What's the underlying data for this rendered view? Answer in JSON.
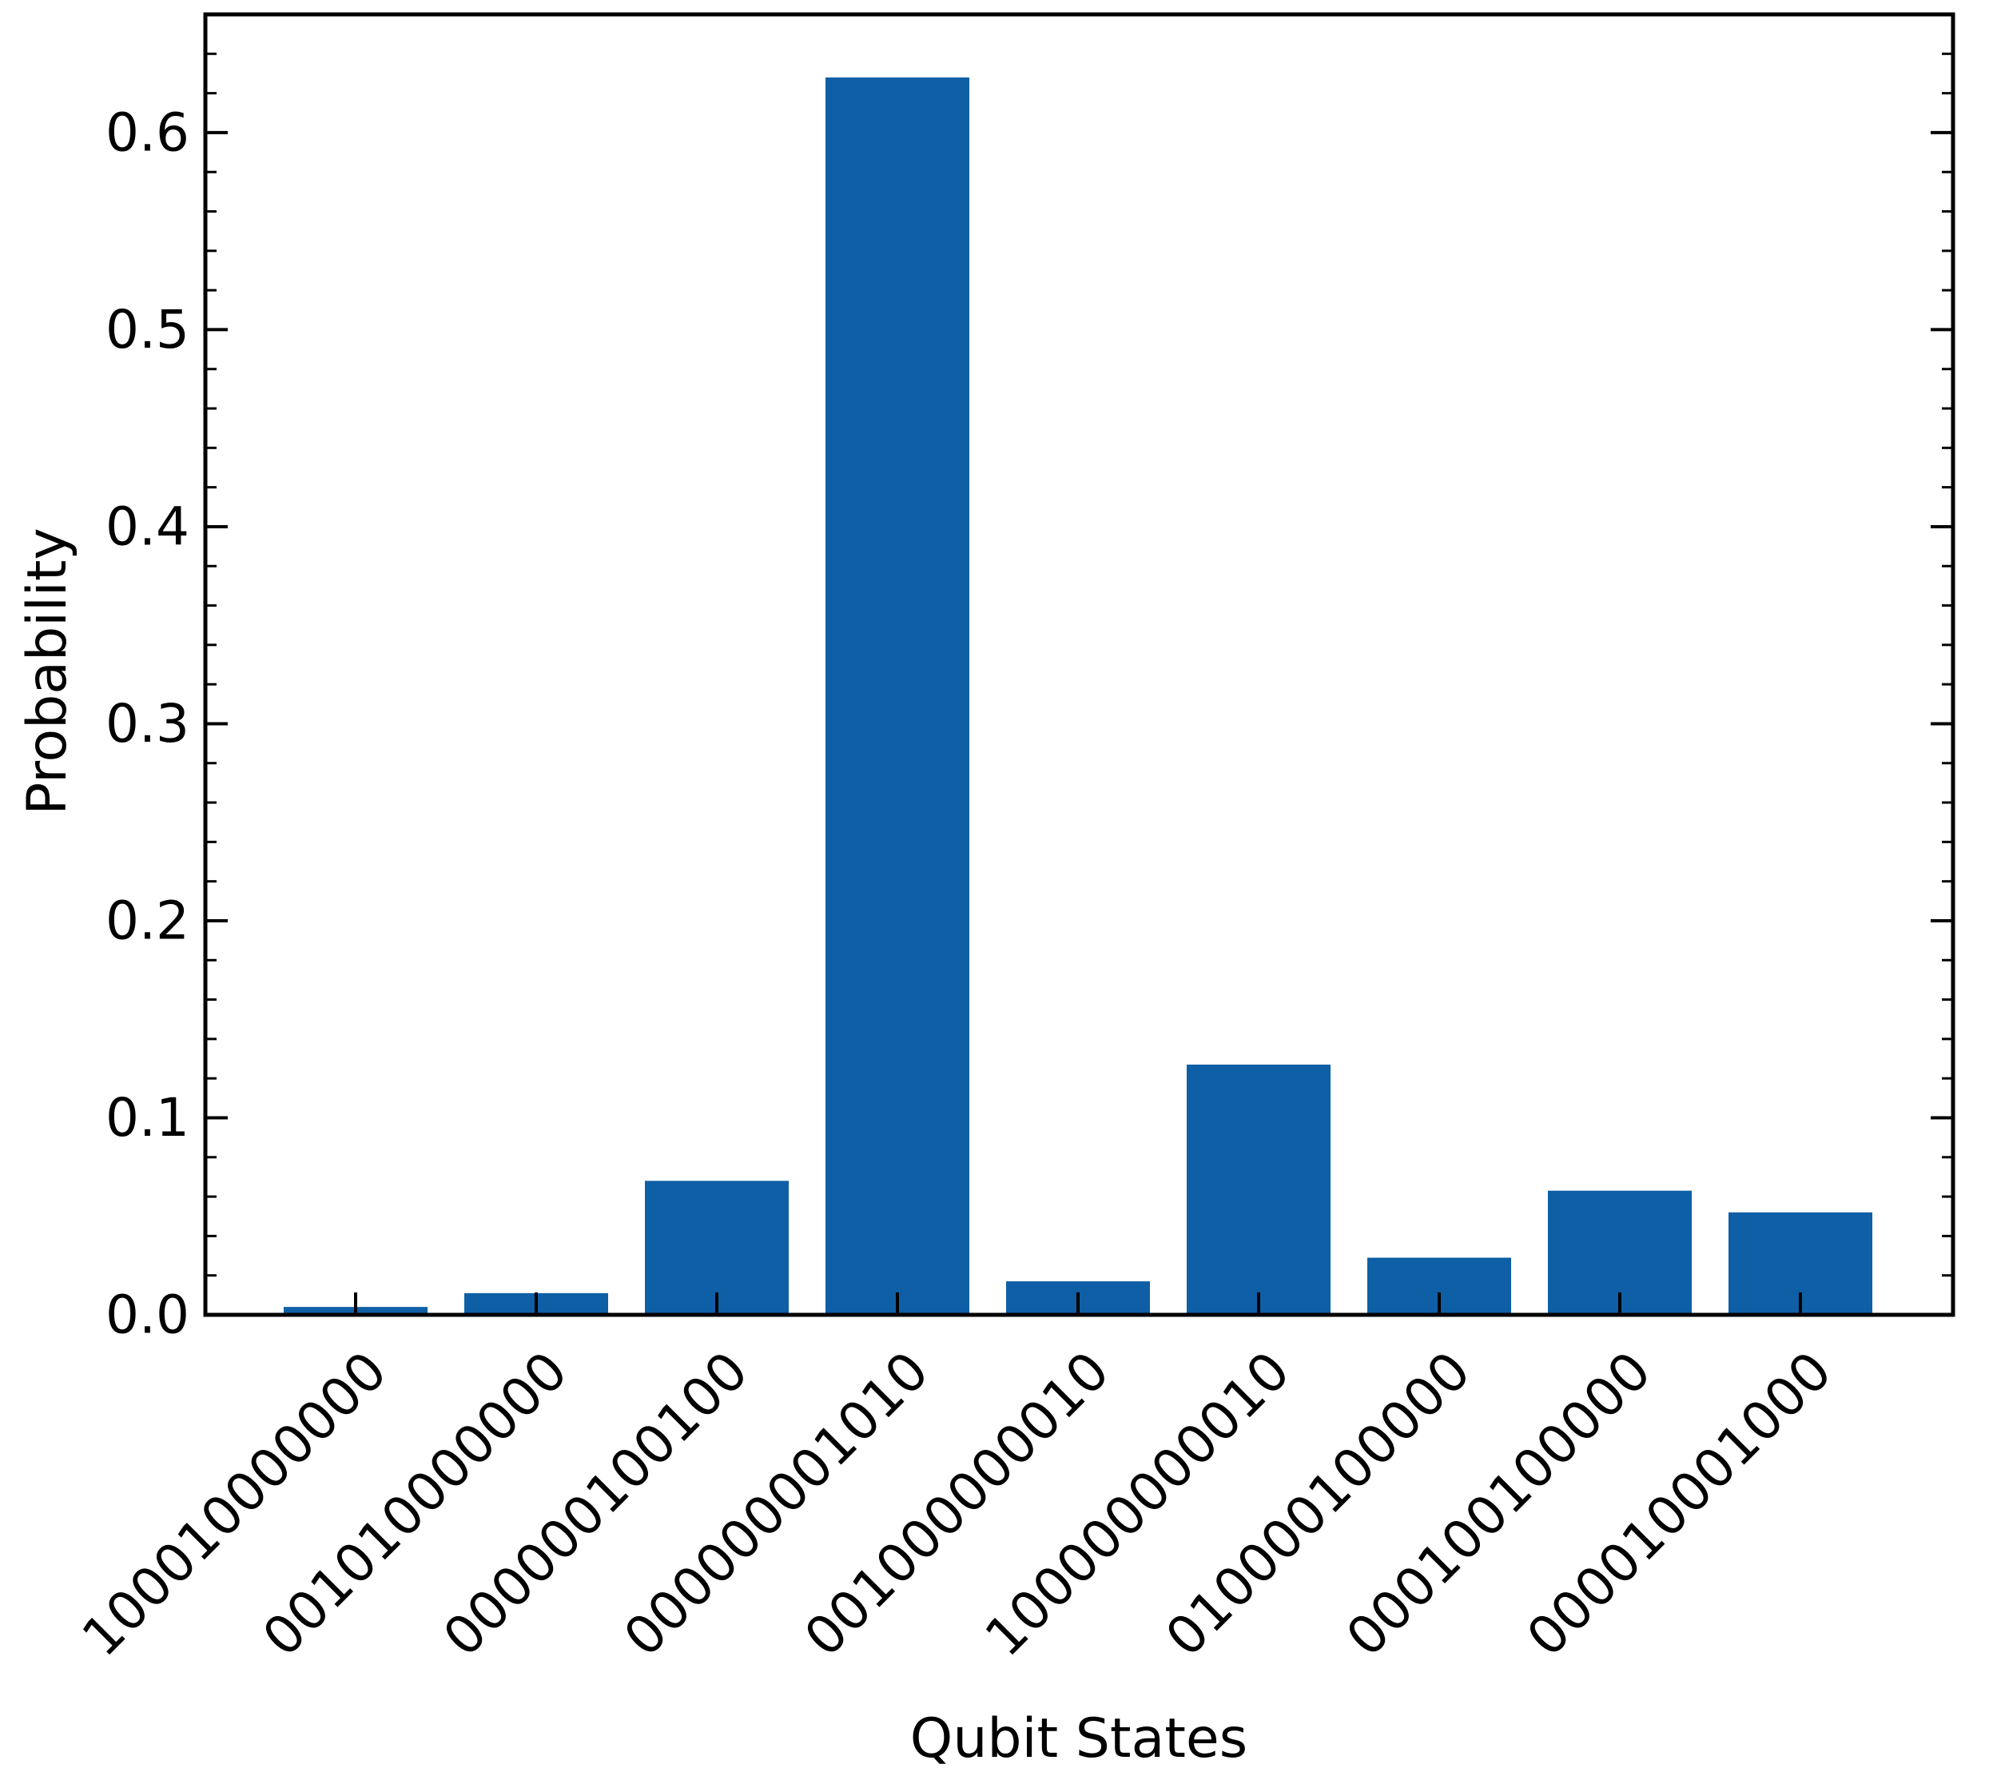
{
  "chart_data": {
    "type": "bar",
    "title": "",
    "xlabel": "Qubit States",
    "ylabel": "Probability",
    "categories": [
      "100010000000",
      "001010000000",
      "000000100100",
      "000000001010",
      "001000000010",
      "100000000010",
      "010000100000",
      "000100100000",
      "000010001000"
    ],
    "values": [
      0.004,
      0.011,
      0.068,
      0.628,
      0.017,
      0.127,
      0.029,
      0.063,
      0.052
    ],
    "ylim": [
      0,
      0.66
    ],
    "yticks": [
      0.0,
      0.1,
      0.2,
      0.3,
      0.4,
      0.5,
      0.6
    ],
    "ytick_labels": [
      "0.0",
      "0.1",
      "0.2",
      "0.3",
      "0.4",
      "0.5",
      "0.6"
    ],
    "bar_color": "#0f5fa6",
    "grid": false,
    "legend": "none"
  }
}
